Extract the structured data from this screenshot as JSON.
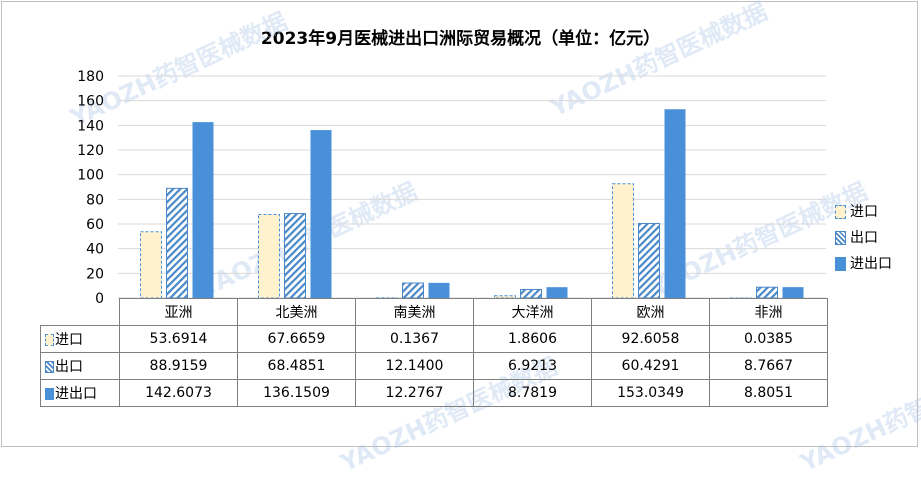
{
  "chart_data": {
    "type": "bar",
    "title": "2023年9月医械进出口洲际贸易概况（单位：亿元）",
    "categories": [
      "亚洲",
      "北美洲",
      "南美洲",
      "大洋洲",
      "欧洲",
      "非洲"
    ],
    "series": [
      {
        "name": "进口",
        "values": [
          53.6914,
          67.6659,
          0.1367,
          1.8606,
          92.6058,
          0.0385
        ],
        "display": [
          "53.6914",
          "67.6659",
          "0.1367",
          "1.8606",
          "92.6058",
          "0.0385"
        ],
        "color": "#fff2cc",
        "edge": "#4a90d9",
        "style": "dashed"
      },
      {
        "name": "出口",
        "values": [
          88.9159,
          68.4851,
          12.14,
          6.9213,
          60.4291,
          8.7667
        ],
        "display": [
          "88.9159",
          "68.4851",
          "12.1400",
          "6.9213",
          "60.4291",
          "8.7667"
        ],
        "color": "#4a88c7",
        "style": "hatched"
      },
      {
        "name": "进出口",
        "values": [
          142.6073,
          136.1509,
          12.2767,
          8.7819,
          153.0349,
          8.8051
        ],
        "display": [
          "142.6073",
          "136.1509",
          "12.2767",
          "8.7819",
          "153.0349",
          "8.8051"
        ],
        "color": "#4a90d9",
        "style": "solid"
      }
    ],
    "ylim": [
      0,
      180
    ],
    "yticks": [
      "0",
      "20",
      "40",
      "60",
      "80",
      "100",
      "120",
      "140",
      "160",
      "180"
    ],
    "grid": true,
    "legend": "right"
  },
  "watermark": "YAOZH药智医械数据"
}
